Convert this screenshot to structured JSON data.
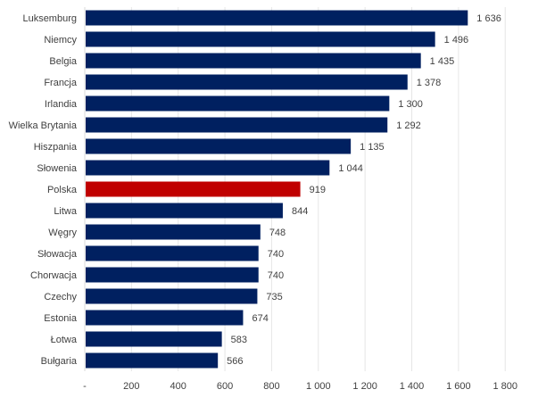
{
  "chart_data": {
    "type": "bar",
    "orientation": "horizontal",
    "categories": [
      "Luksemburg",
      "Niemcy",
      "Belgia",
      "Francja",
      "Irlandia",
      "Wielka Brytania",
      "Hiszpania",
      "Słowenia",
      "Polska",
      "Litwa",
      "Węgry",
      "Słowacja",
      "Chorwacja",
      "Czechy",
      "Estonia",
      "Łotwa",
      "Bułgaria"
    ],
    "values": [
      1636,
      1496,
      1435,
      1378,
      1300,
      1292,
      1135,
      1044,
      919,
      844,
      748,
      740,
      740,
      735,
      674,
      583,
      566
    ],
    "data_labels": [
      "1 636",
      "1 496",
      "1 435",
      "1 378",
      "1 300",
      "1 292",
      "1 135",
      "1 044",
      "919",
      "844",
      "748",
      "740",
      "740",
      "735",
      "674",
      "583",
      "566"
    ],
    "highlight_category": "Polska",
    "colors": {
      "default": "#002060",
      "highlight": "#C00000",
      "grid": "#e6e6e6"
    },
    "xlim": [
      0,
      1800
    ],
    "x_ticks": [
      0,
      200,
      400,
      600,
      800,
      1000,
      1200,
      1400,
      1600,
      1800
    ],
    "x_tick_labels": [
      "-",
      "200",
      "400",
      "600",
      "800",
      "1 000",
      "1 200",
      "1 400",
      "1 600",
      "1 800"
    ],
    "grid": "vertical",
    "title": "",
    "xlabel": "",
    "ylabel": ""
  }
}
